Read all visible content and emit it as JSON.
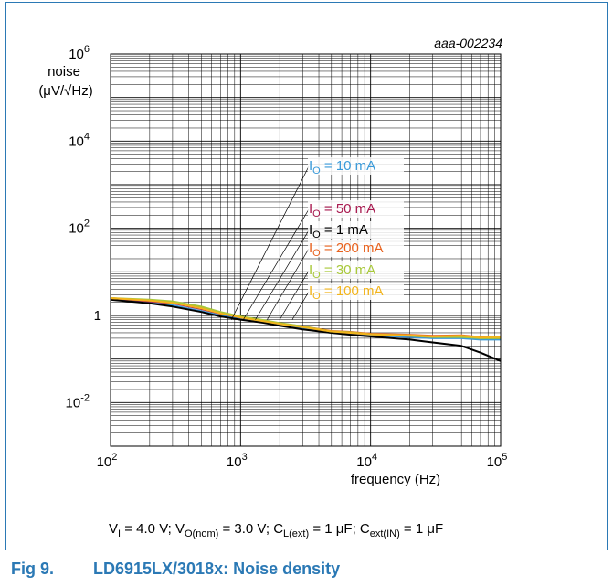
{
  "figure": {
    "code": "aaa-002234",
    "conditions": {
      "vi": {
        "sym": "V",
        "sub": "I",
        "rest": " = 4.0 V; "
      },
      "vo": {
        "sym": "V",
        "sub": "O(nom)",
        "rest": " = 3.0 V; "
      },
      "cl": {
        "sym": "C",
        "sub": "L(ext)",
        "rest": " = 1 μF; "
      },
      "cin": {
        "sym": "C",
        "sub": "ext(IN)",
        "rest": " = 1 μF"
      }
    },
    "caption_number": "Fig 9.",
    "caption_title": "LD6915LX/3018x: Noise density"
  },
  "chart_data": {
    "type": "line",
    "title": "",
    "xlabel": "frequency (Hz)",
    "ylabel": "noise",
    "ylabel_unit": "(μV/√Hz)",
    "x_scale": "log",
    "y_scale": "log",
    "xlim": [
      100,
      100000
    ],
    "ylim": [
      0.001,
      1000000
    ],
    "grid": true,
    "x_ticks": [
      {
        "value": 100,
        "base": "10",
        "exp": "2"
      },
      {
        "value": 1000,
        "base": "10",
        "exp": "3"
      },
      {
        "value": 10000,
        "base": "10",
        "exp": "4"
      },
      {
        "value": 100000,
        "base": "10",
        "exp": "5"
      }
    ],
    "y_ticks": [
      {
        "value": 1000000,
        "base": "10",
        "exp": "6"
      },
      {
        "value": 10000,
        "base": "10",
        "exp": "4"
      },
      {
        "value": 100,
        "base": "10",
        "exp": "2"
      },
      {
        "value": 1,
        "base": "1",
        "exp": ""
      },
      {
        "value": 0.01,
        "base": "10",
        "exp": "-2"
      }
    ],
    "series": [
      {
        "name": "IO = 10 mA",
        "label_main": "I",
        "label_sub": "O",
        "label_rest": " = 10 mA",
        "color": "#3a9ad9",
        "x": [
          100,
          200,
          300,
          500,
          700,
          1000,
          1500,
          2000,
          3000,
          5000,
          7000,
          10000,
          20000,
          30000,
          50000,
          70000,
          100000
        ],
        "y": [
          2.4,
          2.0,
          1.7,
          1.25,
          1.0,
          0.85,
          0.7,
          0.6,
          0.5,
          0.4,
          0.38,
          0.35,
          0.32,
          0.3,
          0.3,
          0.28,
          0.28
        ]
      },
      {
        "name": "IO = 50 mA",
        "label_main": "I",
        "label_sub": "O",
        "label_rest": " = 50 mA",
        "color": "#a8194f",
        "x": [
          100,
          200,
          300,
          500,
          700,
          1000,
          1500,
          2000,
          3000,
          5000,
          7000,
          10000,
          20000,
          30000,
          50000,
          70000,
          100000
        ],
        "y": [
          2.5,
          2.1,
          1.9,
          1.4,
          1.1,
          0.9,
          0.75,
          0.65,
          0.55,
          0.42,
          0.4,
          0.37,
          0.34,
          0.32,
          0.33,
          0.31,
          0.3
        ]
      },
      {
        "name": "IO = 1 mA",
        "label_main": "I",
        "label_sub": "O",
        "label_rest": " = 1 mA",
        "color": "#000000",
        "x": [
          100,
          200,
          300,
          500,
          700,
          1000,
          1500,
          2000,
          3000,
          5000,
          7000,
          10000,
          20000,
          30000,
          50000,
          70000,
          100000
        ],
        "y": [
          2.3,
          1.9,
          1.6,
          1.2,
          0.95,
          0.8,
          0.68,
          0.58,
          0.48,
          0.4,
          0.36,
          0.33,
          0.28,
          0.24,
          0.2,
          0.14,
          0.09
        ]
      },
      {
        "name": "IO = 200 mA",
        "label_main": "I",
        "label_sub": "O",
        "label_rest": " = 200 mA",
        "color": "#e8621e",
        "x": [
          100,
          200,
          300,
          500,
          700,
          1000,
          1500,
          2000,
          3000,
          5000,
          7000,
          10000,
          20000,
          30000,
          50000,
          70000,
          100000
        ],
        "y": [
          2.5,
          2.2,
          2.0,
          1.5,
          1.15,
          0.92,
          0.76,
          0.66,
          0.56,
          0.44,
          0.42,
          0.38,
          0.36,
          0.34,
          0.35,
          0.32,
          0.33
        ]
      },
      {
        "name": "IO = 30 mA",
        "label_main": "I",
        "label_sub": "O",
        "label_rest": " = 30 mA",
        "color": "#a8c83a",
        "x": [
          100,
          200,
          300,
          500,
          700,
          1000,
          1500,
          2000,
          3000,
          5000,
          7000,
          10000,
          20000,
          30000,
          50000,
          70000,
          100000
        ],
        "y": [
          2.5,
          2.3,
          2.1,
          1.6,
          1.2,
          0.95,
          0.78,
          0.67,
          0.56,
          0.43,
          0.41,
          0.37,
          0.34,
          0.32,
          0.32,
          0.3,
          0.3
        ]
      },
      {
        "name": "IO = 100 mA",
        "label_main": "I",
        "label_sub": "O",
        "label_rest": " = 100 mA",
        "color": "#f2b41c",
        "x": [
          100,
          200,
          300,
          500,
          700,
          1000,
          1500,
          2000,
          3000,
          5000,
          7000,
          10000,
          20000,
          30000,
          50000,
          70000,
          100000
        ],
        "y": [
          2.5,
          2.2,
          1.95,
          1.45,
          1.12,
          0.9,
          0.74,
          0.64,
          0.54,
          0.43,
          0.4,
          0.37,
          0.35,
          0.33,
          0.34,
          0.31,
          0.32
        ]
      }
    ]
  }
}
